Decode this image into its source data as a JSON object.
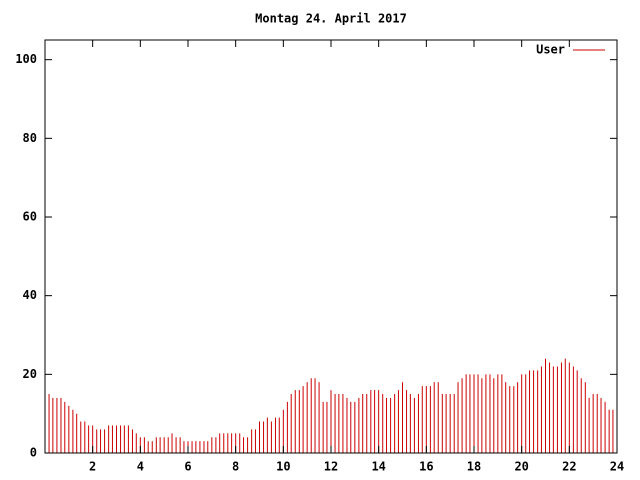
{
  "chart_data": {
    "type": "impulse",
    "title": "Montag 24. April 2017",
    "x": [
      0,
      0.17,
      0.33,
      0.5,
      0.67,
      0.83,
      1,
      1.17,
      1.33,
      1.5,
      1.67,
      1.83,
      2,
      2.17,
      2.33,
      2.5,
      2.67,
      2.83,
      3,
      3.17,
      3.33,
      3.5,
      3.67,
      3.83,
      4,
      4.17,
      4.33,
      4.5,
      4.67,
      4.83,
      5,
      5.17,
      5.33,
      5.5,
      5.67,
      5.83,
      6,
      6.17,
      6.33,
      6.5,
      6.67,
      6.83,
      7,
      7.17,
      7.33,
      7.5,
      7.67,
      7.83,
      8,
      8.17,
      8.33,
      8.5,
      8.67,
      8.83,
      9,
      9.17,
      9.33,
      9.5,
      9.67,
      9.83,
      10,
      10.17,
      10.33,
      10.5,
      10.67,
      10.83,
      11,
      11.17,
      11.33,
      11.5,
      11.67,
      11.83,
      12,
      12.17,
      12.33,
      12.5,
      12.67,
      12.83,
      13,
      13.17,
      13.33,
      13.5,
      13.67,
      13.83,
      14,
      14.17,
      14.33,
      14.5,
      14.67,
      14.83,
      15,
      15.17,
      15.33,
      15.5,
      15.67,
      15.83,
      16,
      16.17,
      16.33,
      16.5,
      16.67,
      16.83,
      17,
      17.17,
      17.33,
      17.5,
      17.67,
      17.83,
      18,
      18.17,
      18.33,
      18.5,
      18.67,
      18.83,
      19,
      19.17,
      19.33,
      19.5,
      19.67,
      19.83,
      20,
      20.17,
      20.33,
      20.5,
      20.67,
      20.83,
      21,
      21.17,
      21.33,
      21.5,
      21.67,
      21.83,
      22,
      22.17,
      22.33,
      22.5,
      22.67,
      22.83,
      23,
      23.17,
      23.33,
      23.5,
      23.67,
      23.83
    ],
    "series": [
      {
        "name": "User",
        "color": "#cc0000",
        "values": [
          15,
          15,
          14,
          14,
          14,
          13,
          12,
          11,
          10,
          8,
          8,
          7,
          7,
          6,
          6,
          6,
          7,
          7,
          7,
          7,
          7,
          7,
          6,
          5,
          4,
          4,
          3,
          3,
          4,
          4,
          4,
          4,
          5,
          4,
          4,
          3,
          3,
          3,
          3,
          3,
          3,
          3,
          4,
          4,
          5,
          5,
          5,
          5,
          5,
          5,
          4,
          4,
          6,
          6,
          8,
          8,
          9,
          8,
          9,
          9,
          11,
          13,
          15,
          16,
          16,
          17,
          18,
          19,
          19,
          18,
          13,
          13,
          16,
          15,
          15,
          15,
          14,
          13,
          13,
          14,
          15,
          15,
          16,
          16,
          16,
          15,
          14,
          14,
          15,
          16,
          18,
          16,
          15,
          14,
          15,
          17,
          17,
          17,
          18,
          18,
          15,
          15,
          15,
          15,
          18,
          19,
          20,
          20,
          20,
          20,
          19,
          20,
          20,
          19,
          20,
          20,
          18,
          17,
          17,
          18,
          20,
          20,
          21,
          21,
          21,
          22,
          24,
          23,
          22,
          22,
          23,
          24,
          23,
          22,
          21,
          19,
          18,
          14,
          15,
          15,
          14,
          13,
          11,
          11
        ]
      }
    ],
    "xlim": [
      0,
      24
    ],
    "xticks": [
      2,
      4,
      6,
      8,
      10,
      12,
      14,
      16,
      18,
      20,
      22,
      24
    ],
    "ylim": [
      0,
      105
    ],
    "yticks": [
      0,
      20,
      40,
      60,
      80,
      100
    ],
    "legend": "top-right"
  }
}
